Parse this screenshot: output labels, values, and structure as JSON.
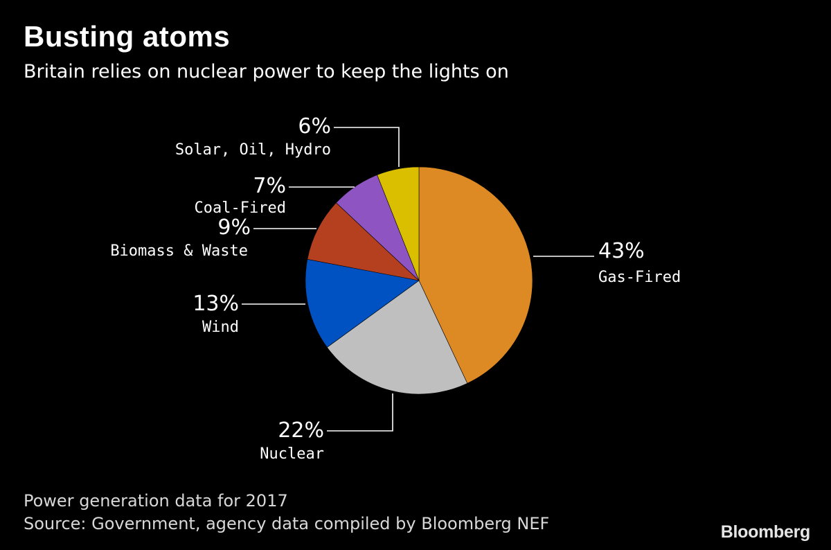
{
  "header": {
    "title": "Busting atoms",
    "subtitle": "Britain relies on nuclear power to keep the lights on"
  },
  "chart_data": {
    "type": "pie",
    "title": "Busting atoms",
    "subtitle": "Britain relies on nuclear power to keep the lights on",
    "unit": "%",
    "start_angle_deg": 0,
    "direction": "clockwise",
    "slices": [
      {
        "label": "Gas-Fired",
        "value": 43,
        "display": "43%",
        "color": "#DE8A24"
      },
      {
        "label": "Nuclear",
        "value": 22,
        "display": "22%",
        "color": "#BFBFBF"
      },
      {
        "label": "Wind",
        "value": 13,
        "display": "13%",
        "color": "#0052C2"
      },
      {
        "label": "Biomass & Waste",
        "value": 9,
        "display": "9%",
        "color": "#B5401F"
      },
      {
        "label": "Coal-Fired",
        "value": 7,
        "display": "7%",
        "color": "#8E55C2"
      },
      {
        "label": "Solar, Oil, Hydro",
        "value": 6,
        "display": "6%",
        "color": "#DABF00"
      }
    ]
  },
  "footer": {
    "note": "Power generation data for 2017",
    "source": "Source: Government, agency data compiled by Bloomberg NEF",
    "logo": "Bloomberg"
  }
}
